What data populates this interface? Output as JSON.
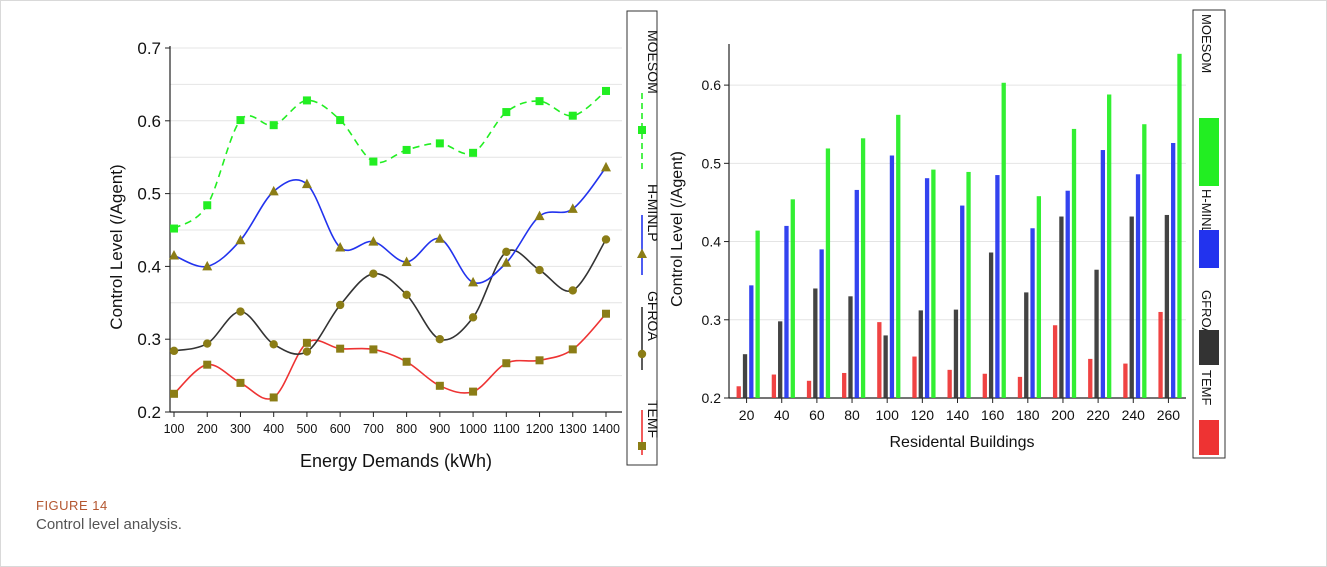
{
  "caption": {
    "label": "FIGURE 14",
    "text": "Control level analysis."
  },
  "colors": {
    "MOESOM": "#22ee22",
    "H-MINLP": "#2233ee",
    "GFROA": "#333333",
    "TEMF": "#ee3333",
    "olive": "#8b7d16"
  },
  "chart_data": [
    {
      "type": "line",
      "xlabel": "Energy Demands (kWh)",
      "ylabel": "Control Level (/Agent)",
      "ylim": [
        0.2,
        0.7
      ],
      "yticks": [
        "0.2",
        "0.3",
        "0.4",
        "0.5",
        "0.6",
        "0.7"
      ],
      "x": [
        100,
        200,
        300,
        400,
        500,
        600,
        700,
        800,
        900,
        1000,
        1100,
        1200,
        1300,
        1400
      ],
      "xticks": [
        "100",
        "200",
        "300",
        "400",
        "500",
        "600",
        "700",
        "800",
        "900",
        "1000",
        "1100",
        "1200",
        "1300",
        "1400"
      ],
      "grid": true,
      "legend_position": "right (vertical)",
      "series": [
        {
          "name": "TEMF",
          "values": [
            0.225,
            0.265,
            0.24,
            0.22,
            0.295,
            0.287,
            0.286,
            0.269,
            0.236,
            0.228,
            0.267,
            0.271,
            0.286,
            0.335
          ]
        },
        {
          "name": "GFROA",
          "values": [
            0.284,
            0.294,
            0.338,
            0.293,
            0.283,
            0.347,
            0.39,
            0.361,
            0.3,
            0.33,
            0.42,
            0.395,
            0.367,
            0.437
          ]
        },
        {
          "name": "H-MINLP",
          "values": [
            0.415,
            0.4,
            0.436,
            0.503,
            0.513,
            0.426,
            0.434,
            0.406,
            0.438,
            0.378,
            0.405,
            0.469,
            0.479,
            0.536
          ]
        },
        {
          "name": "MOESOM",
          "values": [
            0.452,
            0.484,
            0.601,
            0.594,
            0.628,
            0.601,
            0.544,
            0.56,
            0.569,
            0.556,
            0.612,
            0.627,
            0.607,
            0.641
          ]
        }
      ]
    },
    {
      "type": "bar",
      "xlabel": "Residental Buildings",
      "ylabel": "Control Level (/Agent)",
      "ylim": [
        0.2,
        0.65
      ],
      "yticks": [
        "0.2",
        "0.3",
        "0.4",
        "0.5",
        "0.6"
      ],
      "categories": [
        "20",
        "40",
        "60",
        "80",
        "100",
        "120",
        "140",
        "160",
        "180",
        "200",
        "220",
        "240",
        "260"
      ],
      "grid": true,
      "legend_position": "right (vertical)",
      "series": [
        {
          "name": "TEMF",
          "values": [
            0.215,
            0.23,
            0.222,
            0.232,
            0.297,
            0.253,
            0.236,
            0.231,
            0.227,
            0.293,
            0.25,
            0.244,
            0.31
          ]
        },
        {
          "name": "GFROA",
          "values": [
            0.256,
            0.298,
            0.34,
            0.33,
            0.28,
            0.312,
            0.313,
            0.386,
            0.335,
            0.432,
            0.364,
            0.432,
            0.434
          ]
        },
        {
          "name": "H-MINLP",
          "values": [
            0.344,
            0.42,
            0.39,
            0.466,
            0.51,
            0.481,
            0.446,
            0.485,
            0.417,
            0.465,
            0.517,
            0.486,
            0.526
          ]
        },
        {
          "name": "MOESOM",
          "values": [
            0.414,
            0.454,
            0.519,
            0.532,
            0.562,
            0.492,
            0.489,
            0.603,
            0.458,
            0.544,
            0.588,
            0.55,
            0.64
          ]
        }
      ]
    }
  ]
}
